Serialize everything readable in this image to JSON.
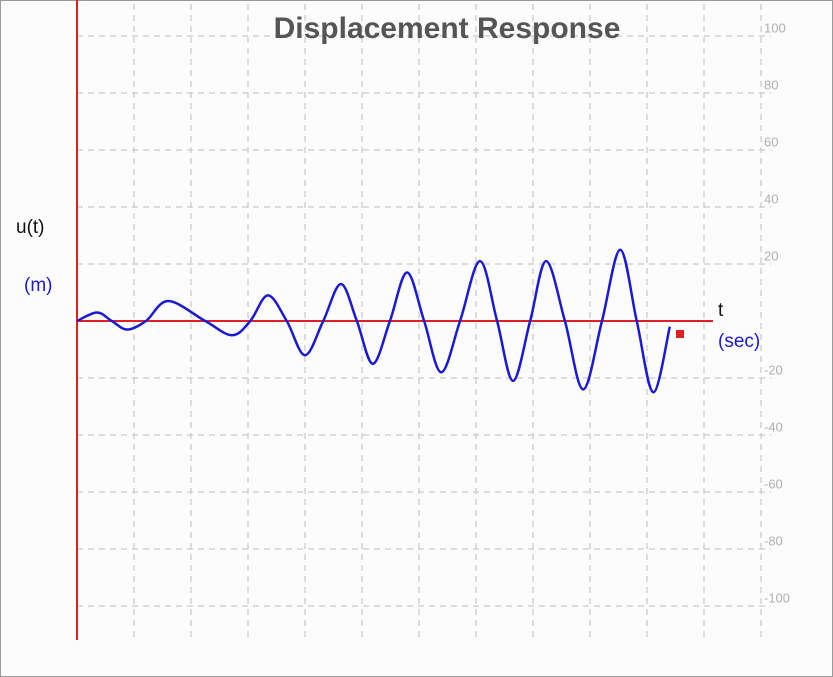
{
  "chart_data": {
    "type": "line",
    "title": "Displacement Response",
    "y_label": "u(t)",
    "y_unit": "(m)",
    "x_label": "t",
    "x_unit": "(sec)",
    "x": [
      0,
      0.35,
      0.61,
      0.88,
      1.21,
      1.6,
      2.25,
      2.72,
      3.04,
      3.35,
      3.68,
      4.0,
      4.32,
      4.63,
      4.91,
      5.19,
      5.49,
      5.79,
      6.09,
      6.39,
      6.72,
      7.07,
      7.37,
      7.65,
      7.95,
      8.23,
      8.56,
      8.88,
      9.21,
      9.53,
      9.82,
      10.11,
      10.4
    ],
    "series": [
      {
        "name": "u(t)",
        "color": "#1a1ad6",
        "values": [
          0,
          3,
          0,
          -3,
          0,
          7,
          0,
          -5,
          0,
          9,
          0,
          -12,
          0,
          13,
          0,
          -15,
          0,
          17,
          0,
          -18,
          0,
          21,
          0,
          -21,
          0,
          21,
          0,
          -24,
          0,
          25,
          0,
          -25,
          -2
        ]
      }
    ],
    "xlim": [
      0,
      12
    ],
    "xticks": [
      1,
      2,
      3,
      4,
      5,
      6,
      7,
      8,
      9,
      10,
      11,
      12
    ],
    "ylim": [
      -100,
      100
    ],
    "yticks": [
      100,
      80,
      60,
      40,
      20,
      -20,
      -40,
      -60,
      -80,
      -100
    ],
    "axis_color": "#e02020",
    "grid": true
  }
}
